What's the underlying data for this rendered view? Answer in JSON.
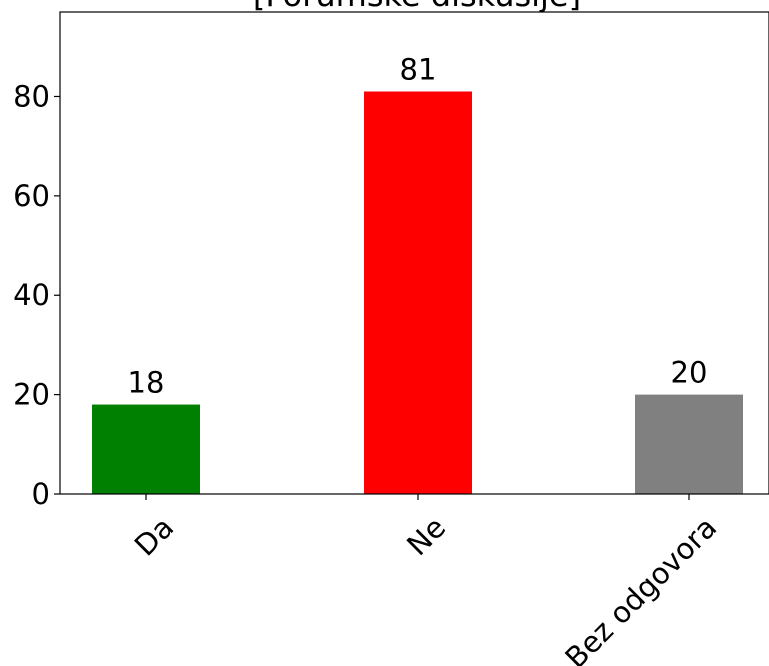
{
  "chart_data": {
    "type": "bar",
    "title": "[Forumske diskusije]",
    "xlabel": "",
    "ylabel": "",
    "categories": [
      "Da",
      "Ne",
      "Bez odgovora"
    ],
    "values": [
      18,
      81,
      20
    ],
    "colors": [
      "#008000",
      "#ff0000",
      "#808080"
    ],
    "ylim": [
      0,
      97
    ],
    "yticks": [
      0,
      20,
      40,
      60,
      80
    ],
    "data_labels": true,
    "grid": false,
    "legend": "none"
  }
}
